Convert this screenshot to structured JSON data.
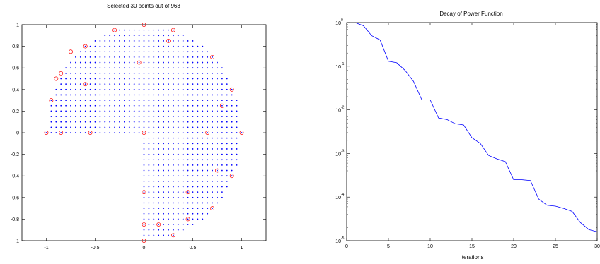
{
  "chart_data": [
    {
      "type": "scatter",
      "title": "Selected  30 points out of 963",
      "xlim": [
        -1.25,
        1.25
      ],
      "ylim": [
        -1,
        1
      ],
      "xticks": [
        -1,
        -0.5,
        0,
        0.5,
        1
      ],
      "yticks": [
        -1,
        -0.8,
        -0.6,
        -0.4,
        -0.2,
        0,
        0.2,
        0.4,
        0.6,
        0.8,
        1
      ],
      "xtick_labels": [
        "-1",
        "-0.5",
        "0",
        "0.5",
        "1"
      ],
      "ytick_labels": [
        "-1",
        "-0.8",
        "-0.6",
        "-0.4",
        "-0.2",
        "0",
        "0.2",
        "0.4",
        "0.6",
        "0.8",
        "1"
      ],
      "grid": false,
      "series": [
        {
          "marker": "dot",
          "color": "#0000ff",
          "description_region": "disk of radius 1 minus the quadrant x<0, y<0; spacing 0.05",
          "spacing": 0.05,
          "count": 963
        },
        {
          "marker": "circle",
          "color": "#ff0000",
          "x": [
            0,
            -0.3,
            0.3,
            -0.6,
            0.25,
            -0.75,
            -0.05,
            0.7,
            -0.9,
            0.9,
            -0.85,
            -0.6,
            0.8,
            -0.95,
            -1,
            -0.85,
            -0.55,
            0,
            0.65,
            1,
            0.75,
            0.9,
            0,
            0.45,
            0.7,
            0.45,
            0,
            0.15,
            0.3,
            0
          ],
          "y": [
            1,
            0.95,
            0.95,
            0.8,
            0.85,
            0.75,
            0.65,
            0.7,
            0.5,
            0.4,
            0.55,
            0.45,
            0.25,
            0.3,
            0,
            0,
            0,
            0,
            0,
            0,
            -0.35,
            -0.4,
            -0.55,
            -0.55,
            -0.7,
            -0.8,
            -0.85,
            -0.85,
            -0.95,
            -1
          ]
        }
      ]
    },
    {
      "type": "line",
      "title": "Decay of Power Function",
      "xlabel": "Iterations",
      "ylabel": "",
      "xlim": [
        0,
        30
      ],
      "ylim": [
        1e-05,
        1
      ],
      "yscale": "log",
      "grid": false,
      "xticks": [
        0,
        5,
        10,
        15,
        20,
        25,
        30
      ],
      "xtick_labels": [
        "0",
        "5",
        "10",
        "15",
        "20",
        "25",
        "30"
      ],
      "ytick_labels": [
        {
          "base": "10",
          "exp": "0",
          "value": 1
        },
        {
          "base": "10",
          "exp": "-1",
          "value": 0.1
        },
        {
          "base": "10",
          "exp": "-2",
          "value": 0.01
        },
        {
          "base": "10",
          "exp": "-3",
          "value": 0.001
        },
        {
          "base": "10",
          "exp": "-4",
          "value": 0.0001
        },
        {
          "base": "10",
          "exp": "-5",
          "value": 1e-05
        }
      ],
      "series": [
        {
          "color": "#0000ff",
          "x": [
            1,
            2,
            3,
            4,
            5,
            6,
            7,
            8,
            9,
            10,
            11,
            12,
            13,
            14,
            15,
            16,
            17,
            18,
            19,
            20,
            21,
            22,
            23,
            24,
            25,
            26,
            27,
            28,
            29,
            30
          ],
          "y": [
            1.0,
            0.85,
            0.5,
            0.4,
            0.13,
            0.12,
            0.08,
            0.045,
            0.017,
            0.017,
            0.0065,
            0.006,
            0.0048,
            0.0045,
            0.0023,
            0.0017,
            0.0009,
            0.00075,
            0.00065,
            0.00025,
            0.00025,
            0.00024,
            9e-05,
            6.5e-05,
            6.2e-05,
            5.5e-05,
            4.7e-05,
            2.6e-05,
            1.8e-05,
            1.6e-05
          ]
        }
      ]
    }
  ]
}
